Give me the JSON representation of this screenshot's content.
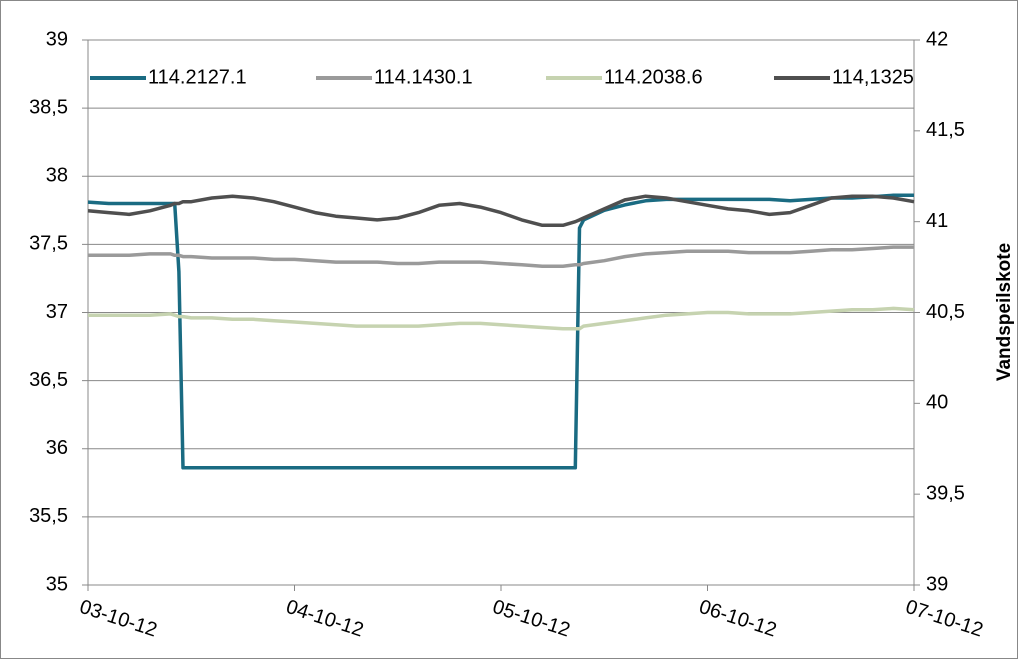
{
  "chart_data": {
    "type": "line",
    "y2_label": "Vandspeilskote",
    "x": [
      0,
      0.1,
      0.2,
      0.3,
      0.4,
      0.42,
      0.44,
      0.46,
      0.5,
      0.6,
      0.7,
      0.8,
      0.9,
      1.0,
      1.1,
      1.2,
      1.3,
      1.4,
      1.5,
      1.6,
      1.7,
      1.8,
      1.9,
      2.0,
      2.1,
      2.2,
      2.3,
      2.36,
      2.38,
      2.4,
      2.5,
      2.6,
      2.7,
      2.8,
      2.9,
      3.0,
      3.1,
      3.2,
      3.3,
      3.4,
      3.5,
      3.6,
      3.7,
      3.8,
      3.9,
      4.0
    ],
    "xlim": [
      0,
      4
    ],
    "xticks": [
      {
        "value": 0,
        "label": "03-10-12"
      },
      {
        "value": 1,
        "label": "04-10-12"
      },
      {
        "value": 2,
        "label": "05-10-12"
      },
      {
        "value": 3,
        "label": "06-10-12"
      },
      {
        "value": 4,
        "label": "07-10-12"
      }
    ],
    "ylim": [
      35,
      39
    ],
    "yticks": [
      35,
      {
        "value": 35.5,
        "label": "35,5"
      },
      36,
      {
        "value": 36.5,
        "label": "36,5"
      },
      37,
      {
        "value": 37.5,
        "label": "37,5"
      },
      38,
      {
        "value": 38.5,
        "label": "38,5"
      },
      39
    ],
    "y2lim": [
      39,
      42
    ],
    "y2ticks": [
      39,
      {
        "value": 39.5,
        "label": "39,5"
      },
      40,
      {
        "value": 40.5,
        "label": "40,5"
      },
      41,
      {
        "value": 41.5,
        "label": "41,5"
      },
      42
    ],
    "grid": true,
    "legend": "top",
    "series": [
      {
        "name": "114.2127.1",
        "color": "#1a6b82",
        "values": [
          37.81,
          37.8,
          37.8,
          37.8,
          37.8,
          37.8,
          37.3,
          35.86,
          35.86,
          35.86,
          35.86,
          35.86,
          35.86,
          35.86,
          35.86,
          35.86,
          35.86,
          35.86,
          35.86,
          35.86,
          35.86,
          35.86,
          35.86,
          35.86,
          35.86,
          35.86,
          35.86,
          35.86,
          37.62,
          37.68,
          37.75,
          37.79,
          37.82,
          37.83,
          37.83,
          37.83,
          37.83,
          37.83,
          37.83,
          37.82,
          37.83,
          37.84,
          37.84,
          37.85,
          37.86,
          37.86
        ]
      },
      {
        "name": "114.1430.1",
        "color": "#9a9a9a",
        "values": [
          37.42,
          37.42,
          37.42,
          37.43,
          37.43,
          37.42,
          37.42,
          37.41,
          37.41,
          37.4,
          37.4,
          37.4,
          37.39,
          37.39,
          37.38,
          37.37,
          37.37,
          37.37,
          37.36,
          37.36,
          37.37,
          37.37,
          37.37,
          37.36,
          37.35,
          37.34,
          37.34,
          37.35,
          37.35,
          37.36,
          37.38,
          37.41,
          37.43,
          37.44,
          37.45,
          37.45,
          37.45,
          37.44,
          37.44,
          37.44,
          37.45,
          37.46,
          37.46,
          37.47,
          37.48,
          37.48
        ]
      },
      {
        "name": "114.2038.6",
        "color": "#c6d3b0",
        "values": [
          36.98,
          36.98,
          36.98,
          36.98,
          36.99,
          36.98,
          36.97,
          36.97,
          36.96,
          36.96,
          36.95,
          36.95,
          36.94,
          36.93,
          36.92,
          36.91,
          36.9,
          36.9,
          36.9,
          36.9,
          36.91,
          36.92,
          36.92,
          36.91,
          36.9,
          36.89,
          36.88,
          36.88,
          36.88,
          36.9,
          36.92,
          36.94,
          36.96,
          36.98,
          36.99,
          37.0,
          37.0,
          36.99,
          36.99,
          36.99,
          37.0,
          37.01,
          37.02,
          37.02,
          37.03,
          37.02
        ]
      },
      {
        "name": "114,1325",
        "color": "#4f4f4f",
        "axis": "y2",
        "values": [
          41.06,
          41.05,
          41.04,
          41.06,
          41.09,
          41.1,
          41.1,
          41.11,
          41.11,
          41.13,
          41.14,
          41.13,
          41.11,
          41.08,
          41.05,
          41.03,
          41.02,
          41.01,
          41.02,
          41.05,
          41.09,
          41.1,
          41.08,
          41.05,
          41.01,
          40.98,
          40.98,
          41.0,
          41.01,
          41.02,
          41.07,
          41.12,
          41.14,
          41.13,
          41.11,
          41.09,
          41.07,
          41.06,
          41.04,
          41.05,
          41.09,
          41.13,
          41.14,
          41.14,
          41.13,
          41.11
        ]
      }
    ]
  }
}
